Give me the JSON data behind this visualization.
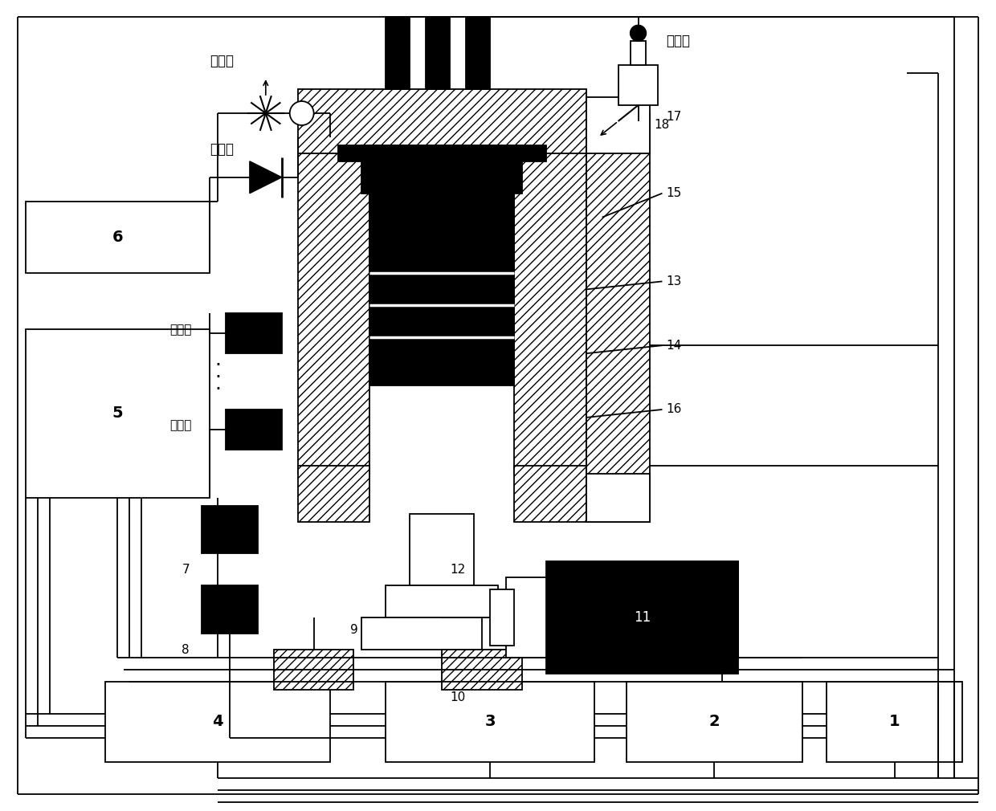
{
  "bg": "#ffffff",
  "lc": "#000000",
  "figsize": [
    12.4,
    10.1
  ],
  "dpi": 100,
  "lw": 1.3,
  "labels": {
    "jie_liu_fa": "节流阀",
    "dan_xiang_fa": "单向阀",
    "yi_liu_fa": "溢流阀",
    "huan_neng_qi": "换能器",
    "box1": "1",
    "box2": "2",
    "box3": "3",
    "box4": "4",
    "box5": "5",
    "box6": "6",
    "n7": "7",
    "n8": "8",
    "n9": "9",
    "n10": "10",
    "n11": "11",
    "n12": "12",
    "n13": "13",
    "n14": "14",
    "n15": "15",
    "n16": "16",
    "n17": "17",
    "n18": "18"
  }
}
